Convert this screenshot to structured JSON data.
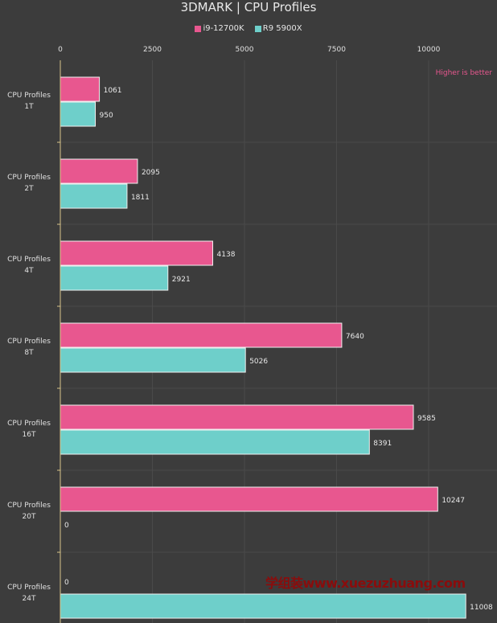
{
  "chart_data": {
    "type": "bar",
    "orientation": "horizontal",
    "title": "3DMARK | CPU Profiles",
    "categories": [
      [
        "CPU Profiles",
        "1T"
      ],
      [
        "CPU Profiles",
        "2T"
      ],
      [
        "CPU Profiles",
        "4T"
      ],
      [
        "CPU Profiles",
        "8T"
      ],
      [
        "CPU Profiles",
        "16T"
      ],
      [
        "CPU Profiles",
        "20T"
      ],
      [
        "CPU Profiles",
        "24T"
      ]
    ],
    "series": [
      {
        "name": "i9-12700K",
        "color": "#e8578f",
        "values": [
          1061,
          2095,
          4138,
          7640,
          9585,
          10247,
          0
        ]
      },
      {
        "name": "R9 5900X",
        "color": "#6ecfca",
        "values": [
          950,
          1811,
          2921,
          5026,
          8391,
          0,
          11008
        ]
      }
    ],
    "xticks": [
      0,
      2500,
      5000,
      7500,
      10000
    ],
    "xlim": [
      0,
      11300
    ],
    "grid": true,
    "legend_position": "top",
    "annotation": {
      "text": "Higher is better",
      "color": "#e8578f"
    }
  },
  "watermark": "学组装www.xuezuzhuang.com"
}
